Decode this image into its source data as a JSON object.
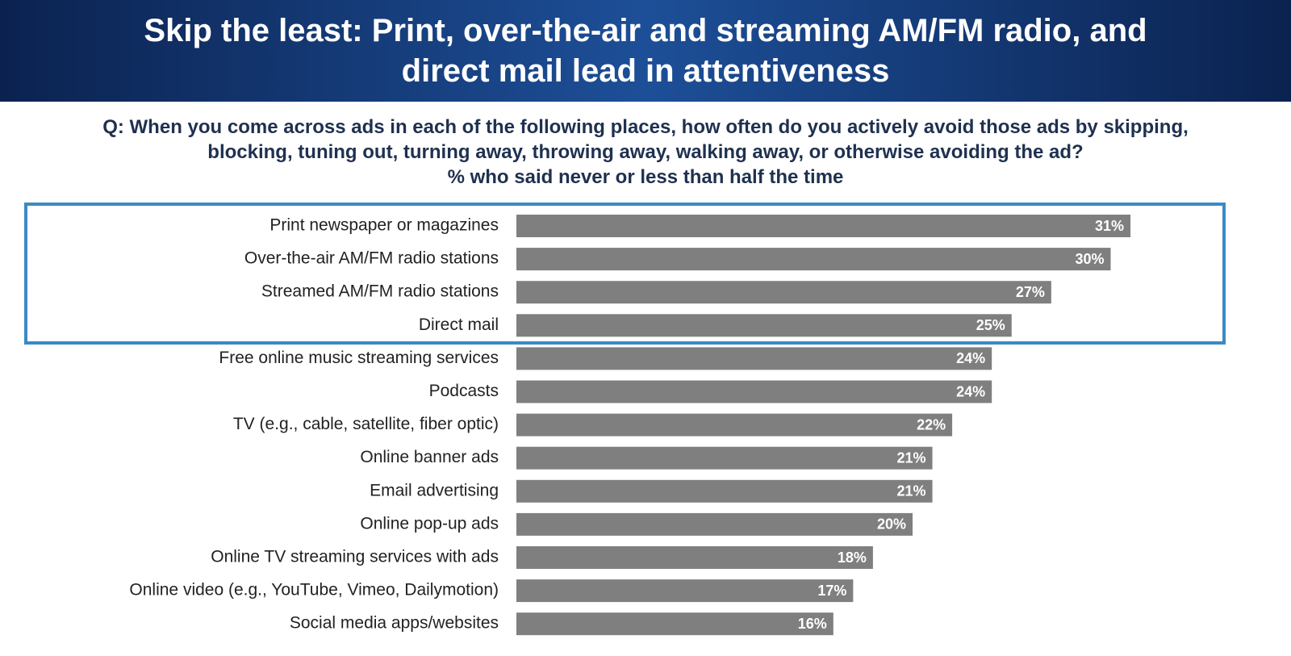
{
  "chart_data": {
    "type": "barh",
    "title": "Skip the least: Print, over-the-air and streaming AM/FM radio, and direct mail lead in attentiveness",
    "subtitle": "Q: When you come across ads in each of the following places, how often do you actively avoid those ads by skipping, blocking, tuning out, turning away, throwing away, walking away, or otherwise avoiding the ad?",
    "note": "% who said never or less than half the time",
    "categories": [
      "Print newspaper or magazines",
      "Over-the-air AM/FM radio stations",
      "Streamed AM/FM radio stations",
      "Direct mail",
      "Free online music streaming services",
      "Podcasts",
      "TV (e.g., cable, satellite, fiber optic)",
      "Online banner ads",
      "Email advertising",
      "Online pop-up ads",
      "Online TV streaming services with ads",
      "Online video (e.g., YouTube, Vimeo, Dailymotion)",
      "Social media apps/websites"
    ],
    "values": [
      31,
      30,
      27,
      25,
      24,
      24,
      22,
      21,
      21,
      20,
      18,
      17,
      16
    ],
    "value_labels": [
      "31%",
      "30%",
      "27%",
      "25%",
      "24%",
      "24%",
      "22%",
      "21%",
      "21%",
      "20%",
      "18%",
      "17%",
      "16%"
    ],
    "color": "#7f7f7f"
  }
}
